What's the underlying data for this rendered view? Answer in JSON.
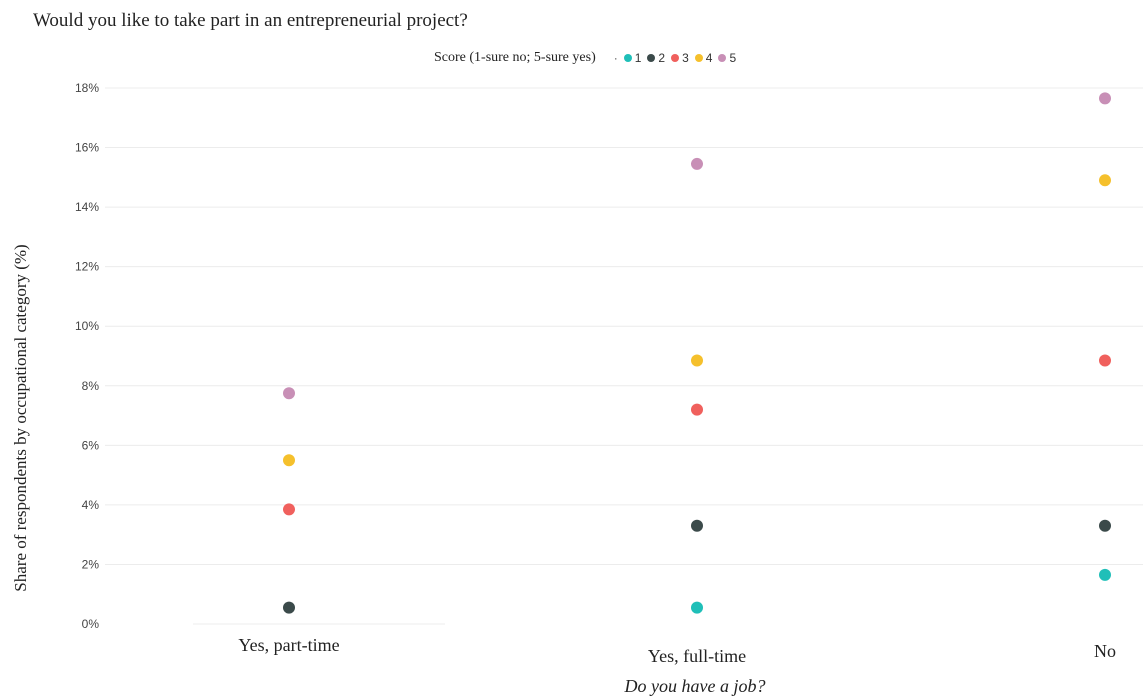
{
  "chart_data": {
    "type": "scatter",
    "title": "Would you like to take part in an entrepreneurial project?",
    "legend_title": "Score (1-sure no; 5-sure yes)",
    "legend_placement": "top",
    "xlabel": "Do you have a job?",
    "ylabel": "Share of respondents by occupational category (%)",
    "categories": [
      "Yes, part-time",
      "Yes, full-time",
      "No"
    ],
    "yticks": [
      "0%",
      "2%",
      "4%",
      "6%",
      "8%",
      "10%",
      "12%",
      "14%",
      "16%",
      "18%"
    ],
    "ylim": [
      0,
      18
    ],
    "grid": true,
    "series": [
      {
        "name": "1",
        "color": "#1fbfb8",
        "values": [
          null,
          0.55,
          1.65
        ]
      },
      {
        "name": "2",
        "color": "#3b4a4a",
        "values": [
          0.55,
          3.3,
          3.3
        ]
      },
      {
        "name": "3",
        "color": "#f0605d",
        "values": [
          3.85,
          7.2,
          8.85
        ]
      },
      {
        "name": "4",
        "color": "#f5c02c",
        "values": [
          5.5,
          8.85,
          14.9
        ]
      },
      {
        "name": "5",
        "color": "#c88fb6",
        "values": [
          7.75,
          15.45,
          17.65
        ]
      }
    ]
  }
}
